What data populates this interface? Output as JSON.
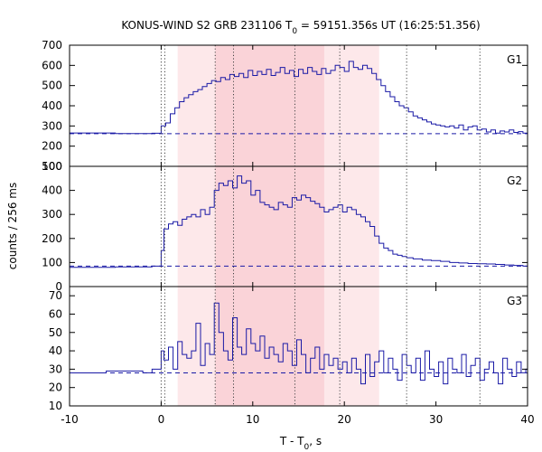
{
  "chart_data": {
    "type": "line",
    "title": "KONUS-WIND S2 GRB 231106 T",
    "title_sub": "0",
    "title_rest": " = 59151.356s UT (16:25:51.356)",
    "xlabel": "T - T",
    "xlabel_sub": "0",
    "xlabel_rest": ", s",
    "ylabel": "counts / 256 ms",
    "xlim": [
      -10,
      40
    ],
    "x_ticks": [
      -10,
      0,
      10,
      20,
      30,
      40
    ],
    "line_color": "#1a1aa6",
    "shade_outer": {
      "x": [
        1.8,
        23.8
      ],
      "color": "#fde8ea"
    },
    "shade_inner": {
      "x": [
        5.9,
        17.8
      ],
      "color": "#fad3d8"
    },
    "dotted_lines": [
      0,
      0.4,
      5.9,
      7.9,
      14.6,
      19.5,
      26.8,
      34.8
    ],
    "panels": [
      {
        "name": "G1",
        "ylim": [
          100,
          700
        ],
        "y_ticks": [
          100,
          200,
          300,
          400,
          500,
          600,
          700
        ],
        "background": 262,
        "x": [
          -10,
          -5,
          -1,
          0,
          0.5,
          1,
          1.5,
          2,
          2.5,
          3,
          3.5,
          4,
          4.5,
          5,
          5.5,
          6,
          6.5,
          7,
          7.5,
          8,
          8.5,
          9,
          9.5,
          10,
          10.5,
          11,
          11.5,
          12,
          12.5,
          13,
          13.5,
          14,
          14.5,
          15,
          15.5,
          16,
          16.5,
          17,
          17.5,
          18,
          18.5,
          19,
          19.5,
          20,
          20.5,
          21,
          21.5,
          22,
          22.5,
          23,
          23.5,
          24,
          24.5,
          25,
          25.5,
          26,
          26.5,
          27,
          27.5,
          28,
          28.5,
          29,
          29.5,
          30,
          30.5,
          31,
          31.5,
          32,
          32.5,
          33,
          33.5,
          34,
          34.5,
          35,
          35.5,
          36,
          36.5,
          37,
          37.5,
          38,
          38.5,
          39,
          39.5,
          40
        ],
        "y": [
          265,
          262,
          264,
          300,
          315,
          360,
          390,
          420,
          440,
          455,
          470,
          480,
          495,
          510,
          525,
          520,
          540,
          530,
          555,
          545,
          560,
          540,
          575,
          550,
          570,
          555,
          580,
          550,
          565,
          590,
          560,
          575,
          545,
          580,
          560,
          590,
          570,
          555,
          585,
          560,
          575,
          600,
          590,
          570,
          620,
          590,
          580,
          600,
          585,
          560,
          530,
          500,
          470,
          445,
          420,
          400,
          390,
          370,
          350,
          340,
          330,
          320,
          310,
          305,
          300,
          295,
          300,
          290,
          305,
          280,
          295,
          300,
          280,
          285,
          270,
          280,
          265,
          275,
          270,
          280,
          268,
          272,
          265,
          270
        ]
      },
      {
        "name": "G2",
        "ylim": [
          0,
          500
        ],
        "y_ticks": [
          0,
          100,
          200,
          300,
          400,
          500
        ],
        "background": 85,
        "x": [
          -10,
          -5,
          -1,
          0,
          0.3,
          0.8,
          1.3,
          1.8,
          2.3,
          2.8,
          3.3,
          3.8,
          4.3,
          4.8,
          5.3,
          5.8,
          6.3,
          6.8,
          7.3,
          7.8,
          8.3,
          8.8,
          9.3,
          9.8,
          10.3,
          10.8,
          11.3,
          11.8,
          12.3,
          12.8,
          13.3,
          13.8,
          14.3,
          14.8,
          15.3,
          15.8,
          16.3,
          16.8,
          17.3,
          17.8,
          18.3,
          18.8,
          19.3,
          19.8,
          20.3,
          20.8,
          21.3,
          21.8,
          22.3,
          22.8,
          23.3,
          23.8,
          24.3,
          24.8,
          25.3,
          25.8,
          26.3,
          26.8,
          27.5,
          28.5,
          29.5,
          30.5,
          31.5,
          32.5,
          33.5,
          34.5,
          35.5,
          36.5,
          37.5,
          38.5,
          39.5,
          40
        ],
        "y": [
          80,
          82,
          85,
          150,
          240,
          260,
          270,
          255,
          280,
          290,
          300,
          290,
          320,
          300,
          330,
          400,
          430,
          420,
          440,
          410,
          460,
          430,
          440,
          380,
          400,
          350,
          340,
          330,
          320,
          350,
          340,
          330,
          370,
          360,
          380,
          370,
          355,
          345,
          330,
          310,
          320,
          330,
          340,
          310,
          330,
          320,
          300,
          290,
          270,
          250,
          210,
          180,
          160,
          150,
          135,
          130,
          125,
          120,
          115,
          110,
          108,
          105,
          100,
          98,
          96,
          95,
          94,
          92,
          90,
          88,
          85,
          82
        ]
      },
      {
        "name": "G3",
        "ylim": [
          10,
          75
        ],
        "y_ticks": [
          10,
          20,
          30,
          40,
          50,
          60,
          70
        ],
        "background": 28,
        "x": [
          -10,
          -6,
          -2,
          -1,
          0,
          0.3,
          0.8,
          1.3,
          1.8,
          2.3,
          2.8,
          3.3,
          3.8,
          4.3,
          4.8,
          5.3,
          5.8,
          6.3,
          6.8,
          7.3,
          7.8,
          8.3,
          8.8,
          9.3,
          9.8,
          10.3,
          10.8,
          11.3,
          11.8,
          12.3,
          12.8,
          13.3,
          13.8,
          14.3,
          14.8,
          15.3,
          15.8,
          16.3,
          16.8,
          17.3,
          17.8,
          18.3,
          18.8,
          19.3,
          19.8,
          20.3,
          20.8,
          21.3,
          21.8,
          22.3,
          22.8,
          23.3,
          23.8,
          24.3,
          24.8,
          25.3,
          25.8,
          26.3,
          26.8,
          27.3,
          27.8,
          28.3,
          28.8,
          29.3,
          29.8,
          30.3,
          30.8,
          31.3,
          31.8,
          32.3,
          32.8,
          33.3,
          33.8,
          34.3,
          34.8,
          35.3,
          35.8,
          36.3,
          36.8,
          37.3,
          37.8,
          38.3,
          38.8,
          39.3,
          39.8
        ],
        "y": [
          28,
          29,
          28,
          30,
          40,
          35,
          42,
          30,
          45,
          38,
          36,
          40,
          55,
          32,
          44,
          38,
          66,
          50,
          40,
          35,
          58,
          42,
          38,
          52,
          44,
          40,
          48,
          36,
          42,
          38,
          34,
          44,
          40,
          32,
          46,
          38,
          28,
          36,
          42,
          30,
          38,
          32,
          36,
          30,
          34,
          28,
          36,
          30,
          22,
          38,
          26,
          34,
          40,
          28,
          36,
          30,
          24,
          38,
          32,
          28,
          36,
          24,
          40,
          30,
          26,
          34,
          22,
          36,
          30,
          28,
          38,
          26,
          32,
          36,
          24,
          30,
          34,
          28,
          22,
          36,
          30,
          26,
          34,
          28,
          30
        ]
      }
    ]
  }
}
